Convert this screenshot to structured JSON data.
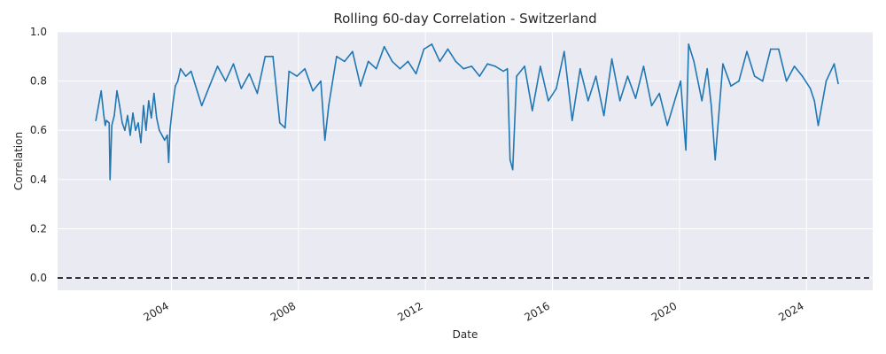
{
  "chart_data": {
    "type": "line",
    "title": "Rolling 60-day Correlation - Switzerland",
    "xlabel": "Date",
    "ylabel": "Correlation",
    "xlim": [
      "2000-06-01",
      "2026-02-01"
    ],
    "ylim": [
      -0.05,
      1.0
    ],
    "grid": true,
    "background": "#eaeaf2",
    "line_color": "#1f77b4",
    "reference_line": {
      "y": 0.0,
      "style": "dashed",
      "color": "#000000"
    },
    "x_ticks": [
      "2004-01-01",
      "2008-01-01",
      "2012-01-01",
      "2016-01-01",
      "2020-01-01",
      "2024-01-01"
    ],
    "x_tick_labels": [
      "2004",
      "2008",
      "2012",
      "2016",
      "2020",
      "2024"
    ],
    "y_ticks": [
      0.0,
      0.2,
      0.4,
      0.6,
      0.8,
      1.0
    ],
    "y_tick_labels": [
      "0.0",
      "0.2",
      "0.4",
      "0.6",
      "0.8",
      "1.0"
    ],
    "series": [
      {
        "x": [
          "2001-08-15",
          "2001-09-15",
          "2001-10-15",
          "2001-11-15",
          "2001-12-01",
          "2001-12-15",
          "2002-01-15",
          "2002-01-25",
          "2002-02-15",
          "2002-03-15",
          "2002-04-15",
          "2002-05-15",
          "2002-06-15",
          "2002-07-15",
          "2002-08-15",
          "2002-09-15",
          "2002-10-15",
          "2002-11-15",
          "2002-12-15",
          "2003-01-15",
          "2003-02-15",
          "2003-03-15",
          "2003-04-15",
          "2003-05-15",
          "2003-06-15",
          "2003-07-15",
          "2003-08-15",
          "2003-09-15",
          "2003-10-15",
          "2003-11-15",
          "2003-12-01",
          "2003-12-15",
          "2004-01-15",
          "2004-02-15",
          "2004-03-15",
          "2004-04-15",
          "2004-06-15",
          "2004-08-15",
          "2004-10-15",
          "2004-12-15",
          "2005-03-15",
          "2005-06-15",
          "2005-09-15",
          "2005-12-15",
          "2006-03-15",
          "2006-06-15",
          "2006-09-15",
          "2006-12-15",
          "2007-03-15",
          "2007-06-01",
          "2007-08-01",
          "2007-09-15",
          "2007-12-15",
          "2008-03-15",
          "2008-06-15",
          "2008-09-15",
          "2008-11-01",
          "2008-12-15",
          "2009-03-15",
          "2009-06-15",
          "2009-09-15",
          "2009-12-15",
          "2010-03-15",
          "2010-06-15",
          "2010-09-15",
          "2010-12-15",
          "2011-03-15",
          "2011-06-15",
          "2011-09-15",
          "2011-12-15",
          "2012-03-15",
          "2012-06-15",
          "2012-09-15",
          "2012-12-15",
          "2013-03-15",
          "2013-06-15",
          "2013-09-15",
          "2013-12-15",
          "2014-03-15",
          "2014-06-15",
          "2014-08-01",
          "2014-09-01",
          "2014-10-01",
          "2014-11-15",
          "2015-02-15",
          "2015-05-15",
          "2015-08-15",
          "2015-11-15",
          "2016-02-15",
          "2016-05-15",
          "2016-08-15",
          "2016-11-15",
          "2017-02-15",
          "2017-05-15",
          "2017-08-15",
          "2017-11-15",
          "2018-02-15",
          "2018-05-15",
          "2018-08-15",
          "2018-11-15",
          "2019-02-15",
          "2019-05-15",
          "2019-08-15",
          "2019-11-15",
          "2020-01-15",
          "2020-03-15",
          "2020-04-15",
          "2020-06-15",
          "2020-09-15",
          "2020-11-15",
          "2021-01-01",
          "2021-02-15",
          "2021-05-15",
          "2021-08-15",
          "2021-11-15",
          "2022-02-15",
          "2022-05-15",
          "2022-08-15",
          "2022-11-15",
          "2023-02-15",
          "2023-05-15",
          "2023-08-15",
          "2023-11-15",
          "2024-02-15",
          "2024-04-01",
          "2024-05-15",
          "2024-08-15",
          "2024-11-15",
          "2024-12-31"
        ],
        "y": [
          0.64,
          0.7,
          0.76,
          0.66,
          0.62,
          0.64,
          0.63,
          0.4,
          0.62,
          0.66,
          0.76,
          0.7,
          0.63,
          0.6,
          0.66,
          0.58,
          0.67,
          0.6,
          0.63,
          0.55,
          0.7,
          0.6,
          0.72,
          0.65,
          0.75,
          0.65,
          0.6,
          0.58,
          0.56,
          0.58,
          0.47,
          0.6,
          0.7,
          0.78,
          0.8,
          0.85,
          0.82,
          0.84,
          0.77,
          0.7,
          0.78,
          0.86,
          0.8,
          0.87,
          0.77,
          0.83,
          0.75,
          0.9,
          0.9,
          0.63,
          0.61,
          0.84,
          0.82,
          0.85,
          0.76,
          0.8,
          0.56,
          0.7,
          0.9,
          0.88,
          0.92,
          0.78,
          0.88,
          0.85,
          0.94,
          0.88,
          0.85,
          0.88,
          0.83,
          0.93,
          0.95,
          0.88,
          0.93,
          0.88,
          0.85,
          0.86,
          0.82,
          0.87,
          0.86,
          0.84,
          0.85,
          0.48,
          0.44,
          0.82,
          0.86,
          0.68,
          0.86,
          0.72,
          0.77,
          0.92,
          0.64,
          0.85,
          0.72,
          0.82,
          0.66,
          0.89,
          0.72,
          0.82,
          0.73,
          0.86,
          0.7,
          0.75,
          0.62,
          0.73,
          0.8,
          0.52,
          0.95,
          0.88,
          0.72,
          0.85,
          0.7,
          0.48,
          0.87,
          0.78,
          0.8,
          0.92,
          0.82,
          0.8,
          0.93,
          0.93,
          0.8,
          0.86,
          0.82,
          0.77,
          0.72,
          0.62,
          0.8,
          0.87,
          0.79
        ]
      }
    ]
  }
}
